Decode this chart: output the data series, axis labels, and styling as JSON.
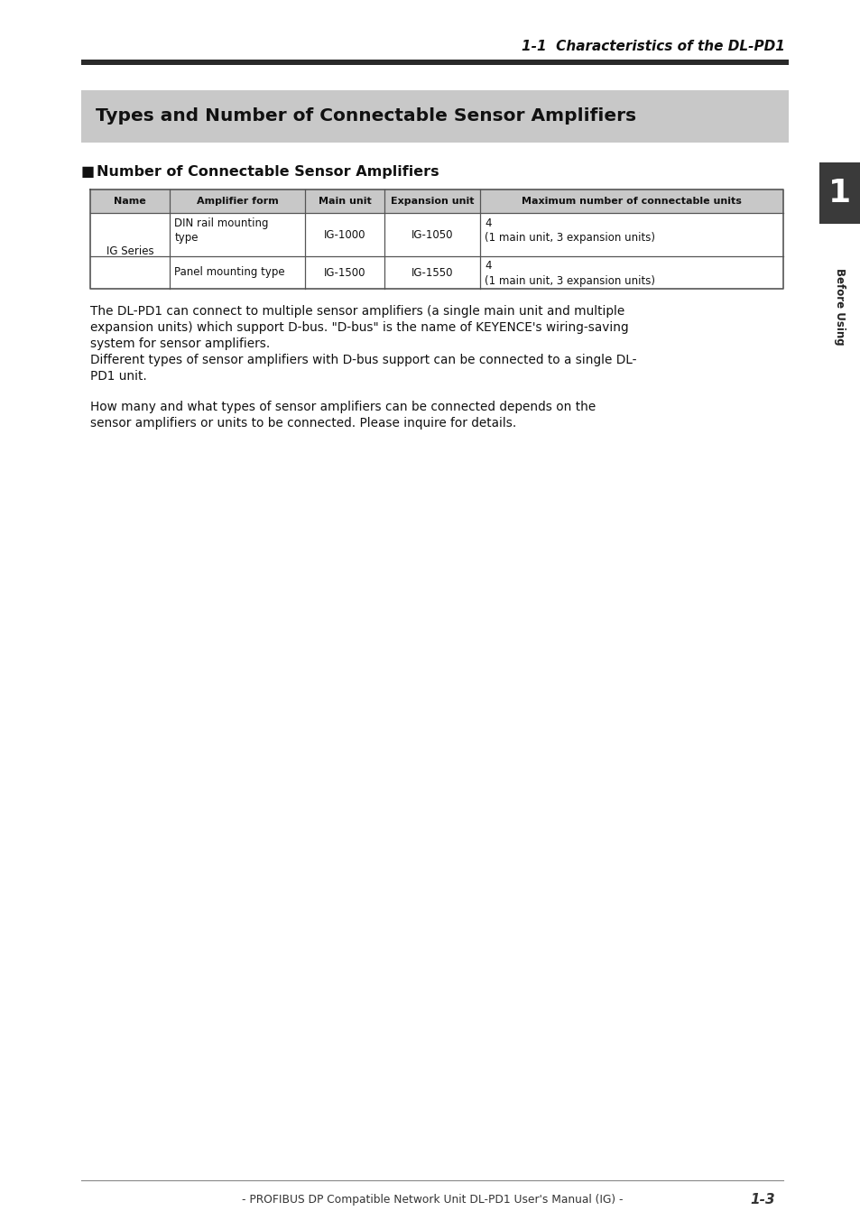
{
  "page_title": "1-1  Characteristics of the DL-PD1",
  "section_title": "Types and Number of Connectable Sensor Amplifiers",
  "subsection_title": "Number of Connectable Sensor Amplifiers",
  "table_headers": [
    "Name",
    "Amplifier form",
    "Main unit",
    "Expansion unit",
    "Maximum number of connectable units"
  ],
  "para1_line1": "The DL-PD1 can connect to multiple sensor amplifiers (a single main unit and multiple",
  "para1_line2": "expansion units) which support D-bus. \"D-bus\" is the name of KEYENCE's wiring-saving",
  "para1_line3": "system for sensor amplifiers.",
  "para2_line1": "Different types of sensor amplifiers with D-bus support can be connected to a single DL-",
  "para2_line2": "PD1 unit.",
  "para3_line1": "How many and what types of sensor amplifiers can be connected depends on the",
  "para3_line2": "sensor amplifiers or units to be connected. Please inquire for details.",
  "footer_text": "- PROFIBUS DP Compatible Network Unit DL-PD1 User's Manual (IG) -",
  "footer_page": "1-3",
  "sidebar_text": "Before Using",
  "sidebar_number": "1",
  "bg_color": "#ffffff",
  "section_bg_color": "#c8c8c8",
  "header_bg_color": "#c8c8c8",
  "sidebar_bg_color": "#3a3a3a"
}
